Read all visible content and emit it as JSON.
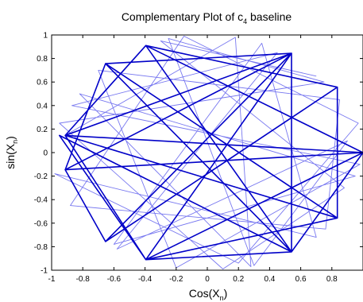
{
  "chart_data": {
    "type": "line",
    "title": "Complementary Plot of c",
    "title_subscript": "4",
    "title_suffix": " baseline",
    "xlabel": "Cos(X",
    "xlabel_subscript": "n",
    "xlabel_suffix": ")",
    "ylabel": "sin(X",
    "ylabel_subscript": "n",
    "ylabel_suffix": ")",
    "xlim": [
      -1,
      1
    ],
    "ylim": [
      -1,
      1
    ],
    "xticks": [
      "-1",
      "-0.8",
      "-0.6",
      "-0.4",
      "-0.2",
      "0",
      "0.2",
      "0.4",
      "0.6",
      "0.8"
    ],
    "xtick_values": [
      -1,
      -0.8,
      -0.6,
      -0.4,
      -0.2,
      0,
      0.2,
      0.4,
      0.6,
      0.8
    ],
    "yticks": [
      "-1",
      "-0.8",
      "-0.6",
      "-0.4",
      "-0.2",
      "0",
      "0.2",
      "0.4",
      "0.6",
      "0.8",
      "1"
    ],
    "ytick_values": [
      -1,
      -0.8,
      -0.6,
      -0.4,
      -0.2,
      0,
      0.2,
      0.4,
      0.6,
      0.8,
      1
    ],
    "grid": false,
    "colors": {
      "dark": "#0000c8",
      "light": "#7878f0"
    },
    "series": [
      {
        "style": "dark",
        "points": [
          [
            1.0,
            0.0
          ],
          [
            -0.913,
            0.146
          ],
          [
            0.541,
            0.844
          ],
          [
            -0.395,
            -0.91
          ],
          [
            -0.95,
            0.146
          ],
          [
            0.541,
            -0.844
          ],
          [
            -0.395,
            0.91
          ],
          [
            1.0,
            0.0
          ],
          [
            -0.913,
            -0.146
          ],
          [
            0.541,
            0.844
          ],
          [
            -0.654,
            -0.756
          ],
          [
            0.835,
            0.556
          ],
          [
            0.835,
            -0.556
          ],
          [
            -0.654,
            0.756
          ],
          [
            0.541,
            0.844
          ],
          [
            0.541,
            -0.844
          ],
          [
            -0.395,
            -0.91
          ],
          [
            0.835,
            -0.556
          ],
          [
            -0.913,
            0.146
          ],
          [
            -0.395,
            0.91
          ],
          [
            0.835,
            0.556
          ],
          [
            -0.654,
            -0.756
          ],
          [
            -0.913,
            -0.146
          ],
          [
            -0.654,
            0.756
          ],
          [
            0.541,
            -0.844
          ],
          [
            1.0,
            0.0
          ],
          [
            -0.395,
            -0.91
          ],
          [
            -0.913,
            0.146
          ]
        ]
      },
      {
        "style": "light",
        "points": [
          [
            -0.913,
            0.146
          ],
          [
            0.18,
            0.98
          ],
          [
            0.28,
            -0.97
          ],
          [
            -0.82,
            0.5
          ],
          [
            0.95,
            -0.2
          ],
          [
            -0.6,
            -0.78
          ],
          [
            0.35,
            0.93
          ],
          [
            0.7,
            -0.72
          ],
          [
            -0.98,
            -0.18
          ],
          [
            0.2,
            -0.94
          ],
          [
            0.97,
            0.25
          ],
          [
            -0.15,
            0.99
          ],
          [
            -0.88,
            -0.45
          ],
          [
            0.76,
            -0.65
          ],
          [
            0.85,
            0.45
          ],
          [
            -0.7,
            0.7
          ],
          [
            -0.2,
            -0.98
          ],
          [
            0.98,
            -0.1
          ],
          [
            -0.87,
            0.4
          ],
          [
            0.45,
            0.85
          ],
          [
            -0.58,
            -0.82
          ],
          [
            0.9,
            0.1
          ],
          [
            0.3,
            -0.96
          ],
          [
            -0.25,
            0.97
          ],
          [
            0.75,
            0.6
          ],
          [
            -0.95,
            0.25
          ],
          [
            0.1,
            -0.99
          ],
          [
            0.88,
            -0.3
          ],
          [
            -0.3,
            0.95
          ],
          [
            0.7,
            0.65
          ]
        ]
      }
    ]
  }
}
